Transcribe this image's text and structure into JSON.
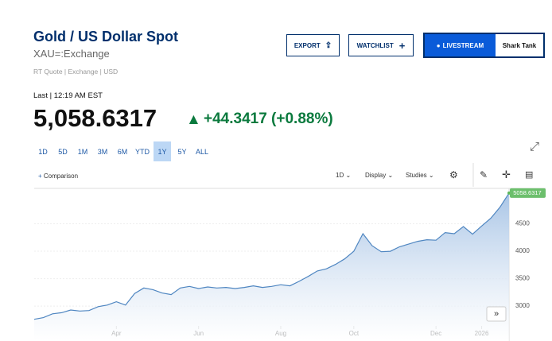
{
  "header": {
    "title": "Gold / US Dollar Spot",
    "symbol": "XAU=:Exchange",
    "meta": "RT Quote | Exchange | USD"
  },
  "buttons": {
    "export": "EXPORT",
    "watchlist": "WATCHLIST",
    "livestream": "LIVESTREAM",
    "show": "Shark Tank"
  },
  "quote": {
    "last": "Last | 12:19 AM EST",
    "price": "5,058.6317",
    "change": "+44.3417 (+0.88%)"
  },
  "ranges": [
    "1D",
    "5D",
    "1M",
    "3M",
    "6M",
    "YTD",
    "1Y",
    "5Y",
    "ALL"
  ],
  "active_range": "1Y",
  "toolbar": {
    "comparison": "Comparison",
    "interval": "1D",
    "display": "Display",
    "studies": "Studies"
  },
  "chart_data": {
    "type": "area",
    "color": "#4f86c1",
    "categories": [
      null,
      null,
      null,
      null,
      null,
      null,
      null,
      null,
      null,
      "Apr",
      null,
      null,
      null,
      null,
      null,
      null,
      null,
      null,
      "Jun",
      null,
      null,
      null,
      null,
      null,
      null,
      null,
      null,
      "Aug",
      null,
      null,
      null,
      null,
      null,
      null,
      null,
      "Oct",
      null,
      null,
      null,
      null,
      null,
      null,
      null,
      null,
      "Dec",
      null,
      null,
      null,
      null,
      "2026",
      null,
      null,
      null
    ],
    "series": [
      {
        "values": [
          2760,
          2790,
          2860,
          2880,
          2930,
          2910,
          2920,
          2990,
          3020,
          3080,
          3020,
          3230,
          3330,
          3300,
          3240,
          3210,
          3330,
          3360,
          3320,
          3350,
          3330,
          3340,
          3320,
          3340,
          3370,
          3340,
          3360,
          3390,
          3370,
          3450,
          3540,
          3640,
          3680,
          3760,
          3860,
          4000,
          4320,
          4100,
          3990,
          4000,
          4080,
          4130,
          4180,
          4210,
          4200,
          4340,
          4320,
          4450,
          4310,
          4460,
          4600,
          4800,
          5058.6317
        ]
      }
    ],
    "ylim": [
      2640,
      5130
    ],
    "yticks": [
      3000,
      3500,
      4000,
      4500
    ],
    "grid": true
  }
}
